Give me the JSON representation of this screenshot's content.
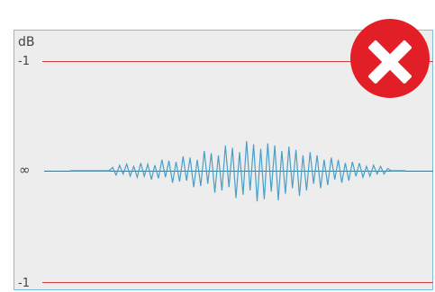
{
  "meter": {
    "unit_label": "dB",
    "top_limit_label": "-1",
    "zero_label": "∞",
    "bottom_limit_label": "-1"
  },
  "waveform": {
    "amplitudes": [
      0,
      0,
      0,
      0,
      0,
      0,
      0,
      0,
      0,
      0,
      0,
      0,
      0.03,
      -0.04,
      0.05,
      -0.03,
      0.06,
      -0.05,
      0.04,
      -0.06,
      0.07,
      -0.05,
      0.06,
      -0.08,
      0.05,
      -0.07,
      0.1,
      -0.06,
      0.09,
      -0.11,
      0.08,
      -0.1,
      0.13,
      -0.09,
      0.12,
      -0.15,
      0.1,
      -0.14,
      0.18,
      -0.12,
      0.16,
      -0.2,
      0.14,
      -0.18,
      0.23,
      -0.15,
      0.21,
      -0.25,
      0.17,
      -0.22,
      0.27,
      -0.18,
      0.24,
      -0.28,
      0.2,
      -0.26,
      0.25,
      -0.19,
      0.23,
      -0.27,
      0.18,
      -0.21,
      0.22,
      -0.16,
      0.19,
      -0.23,
      0.14,
      -0.18,
      0.17,
      -0.12,
      0.14,
      -0.16,
      0.1,
      -0.13,
      0.12,
      -0.08,
      0.1,
      -0.11,
      0.07,
      -0.09,
      0.08,
      -0.05,
      0.07,
      -0.06,
      0.04,
      -0.05,
      0.05,
      -0.03,
      0.04,
      -0.03,
      0.02,
      0,
      0,
      0,
      0,
      0
    ],
    "line_color": "#4a9fc7"
  },
  "status": {
    "icon": "close-x-icon",
    "color": "#e21f26"
  },
  "colors": {
    "limit_line": "#cf3b3b",
    "baseline": "#3f6f84",
    "panel_border": "#7cc0dc",
    "panel_background": "#ededed"
  }
}
